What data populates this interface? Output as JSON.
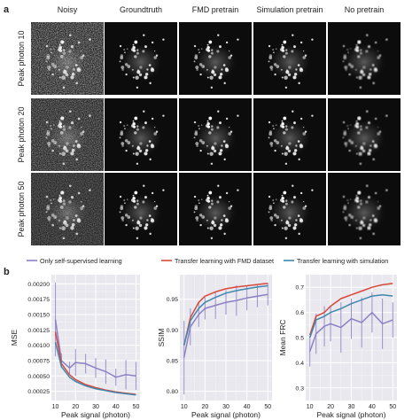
{
  "panel_a": {
    "label": "a",
    "columns": [
      "Noisy",
      "Groundtruth",
      "FMD pretrain",
      "Simulation pretrain",
      "No pretrain"
    ],
    "rows": [
      "Peak photon 10",
      "Peak photon 20",
      "Peak photon 50"
    ]
  },
  "panel_b": {
    "label": "b",
    "legend": [
      {
        "name": "Only self-supervised learning",
        "color": "#8c7fc4"
      },
      {
        "name": "Transfer learning with FMD dataset",
        "color": "#d9473a"
      },
      {
        "name": "Transfer learning with simulation",
        "color": "#3f87ad"
      }
    ]
  },
  "chart_data": [
    {
      "type": "line",
      "ylabel": "MSE",
      "xlabel": "Peak signal (photon)",
      "xlim": [
        8,
        52
      ],
      "ylim": [
        0.0001,
        0.00215
      ],
      "xticks": [
        10,
        20,
        30,
        40,
        50
      ],
      "yticks": [
        0.00025,
        0.0005,
        0.00075,
        0.001,
        0.00125,
        0.0015,
        0.00175,
        0.002
      ],
      "ytick_labels": [
        "0.00025",
        "0.00050",
        "0.00075",
        "0.00100",
        "0.00125",
        "0.00150",
        "0.00175",
        "0.00200"
      ],
      "grid": true,
      "x": [
        10,
        13,
        17,
        20,
        25,
        30,
        35,
        40,
        45,
        50
      ],
      "series": [
        {
          "name": "Only self-supervised learning",
          "color": "#8c7fc4",
          "values": [
            0.00142,
            0.00075,
            0.00063,
            0.00072,
            0.0007,
            0.00063,
            0.00057,
            0.00048,
            0.00052,
            0.0005
          ],
          "error": [
            0.0006,
            0.00012,
            0.0001,
            0.00022,
            0.00016,
            0.00016,
            0.0002,
            0.00014,
            0.00024,
            0.00023
          ]
        },
        {
          "name": "Transfer learning with FMD dataset",
          "color": "#d9473a",
          "values": [
            0.00122,
            0.0007,
            0.00052,
            0.00044,
            0.00036,
            0.00031,
            0.00027,
            0.00024,
            0.00022,
            0.0002
          ]
        },
        {
          "name": "Transfer learning with simulation",
          "color": "#3f87ad",
          "values": [
            0.00105,
            0.00065,
            0.00048,
            0.00041,
            0.00034,
            0.00029,
            0.00026,
            0.00023,
            0.00021,
            0.00019
          ]
        }
      ]
    },
    {
      "type": "line",
      "ylabel": "SSIM",
      "xlabel": "Peak signal (photon)",
      "xlim": [
        8,
        52
      ],
      "ylim": [
        0.785,
        0.99
      ],
      "xticks": [
        10,
        20,
        30,
        40,
        50
      ],
      "yticks": [
        0.8,
        0.85,
        0.9,
        0.95
      ],
      "ytick_labels": [
        "0.80",
        "0.85",
        "0.90",
        "0.95"
      ],
      "grid": true,
      "x": [
        10,
        13,
        17,
        20,
        25,
        30,
        35,
        40,
        45,
        50
      ],
      "series": [
        {
          "name": "Only self-supervised learning",
          "color": "#8c7fc4",
          "values": [
            0.855,
            0.905,
            0.925,
            0.935,
            0.94,
            0.945,
            0.948,
            0.952,
            0.955,
            0.958
          ],
          "error": [
            0.06,
            0.03,
            0.02,
            0.018,
            0.022,
            0.02,
            0.025,
            0.02,
            0.018,
            0.018
          ]
        },
        {
          "name": "Transfer learning with FMD dataset",
          "color": "#d9473a",
          "values": [
            0.875,
            0.92,
            0.945,
            0.955,
            0.962,
            0.967,
            0.97,
            0.972,
            0.974,
            0.976
          ]
        },
        {
          "name": "Transfer learning with simulation",
          "color": "#3f87ad",
          "values": [
            0.875,
            0.915,
            0.935,
            0.945,
            0.953,
            0.96,
            0.964,
            0.967,
            0.97,
            0.972
          ]
        }
      ]
    },
    {
      "type": "line",
      "ylabel": "Mean FRC",
      "xlabel": "Peak signal (photon)",
      "xlim": [
        8,
        52
      ],
      "ylim": [
        0.25,
        0.75
      ],
      "xticks": [
        10,
        20,
        30,
        40,
        50
      ],
      "yticks": [
        0.3,
        0.4,
        0.5,
        0.6,
        0.7
      ],
      "ytick_labels": [
        "0.3",
        "0.4",
        "0.5",
        "0.6",
        "0.7"
      ],
      "grid": true,
      "x": [
        10,
        13,
        17,
        20,
        25,
        30,
        35,
        40,
        45,
        50
      ],
      "series": [
        {
          "name": "Only self-supervised learning",
          "color": "#8c7fc4",
          "values": [
            0.445,
            0.515,
            0.545,
            0.555,
            0.54,
            0.575,
            0.56,
            0.6,
            0.555,
            0.57
          ],
          "error": [
            0.06,
            0.08,
            0.08,
            0.07,
            0.1,
            0.08,
            0.1,
            0.08,
            0.1,
            0.07
          ]
        },
        {
          "name": "Transfer learning with FMD dataset",
          "color": "#d9473a",
          "values": [
            0.51,
            0.585,
            0.6,
            0.625,
            0.655,
            0.67,
            0.685,
            0.7,
            0.71,
            0.715
          ]
        },
        {
          "name": "Transfer learning with simulation",
          "color": "#3f87ad",
          "values": [
            0.5,
            0.57,
            0.585,
            0.6,
            0.615,
            0.635,
            0.65,
            0.665,
            0.67,
            0.665
          ]
        }
      ]
    }
  ]
}
